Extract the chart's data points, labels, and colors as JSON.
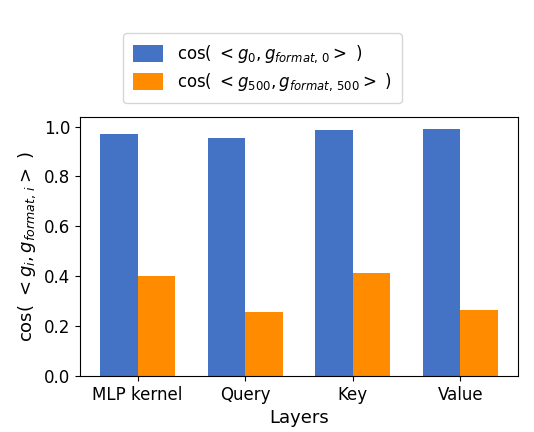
{
  "categories": [
    "MLP kernel",
    "Query",
    "Key",
    "Value"
  ],
  "blue_values": [
    0.97,
    0.955,
    0.985,
    0.99
  ],
  "orange_values": [
    0.4,
    0.258,
    0.412,
    0.265
  ],
  "blue_color": "#4472C4",
  "orange_color": "#FF8C00",
  "legend_label_blue": "cos( $<g_0, g_{format,\\,0}>$ )",
  "legend_label_orange": "cos( $<g_{500}, g_{format,\\,500}>$ )",
  "xlabel": "Layers",
  "ylabel": "cos( $<g_i, g_{format,\\,i}>$ )",
  "ylim": [
    0.0,
    1.04
  ],
  "yticks": [
    0.0,
    0.2,
    0.4,
    0.6,
    0.8,
    1.0
  ],
  "bar_width": 0.35,
  "figsize": [
    5.34,
    4.32
  ],
  "dpi": 100,
  "legend_fontsize": 12,
  "axis_label_fontsize": 13,
  "tick_fontsize": 12
}
